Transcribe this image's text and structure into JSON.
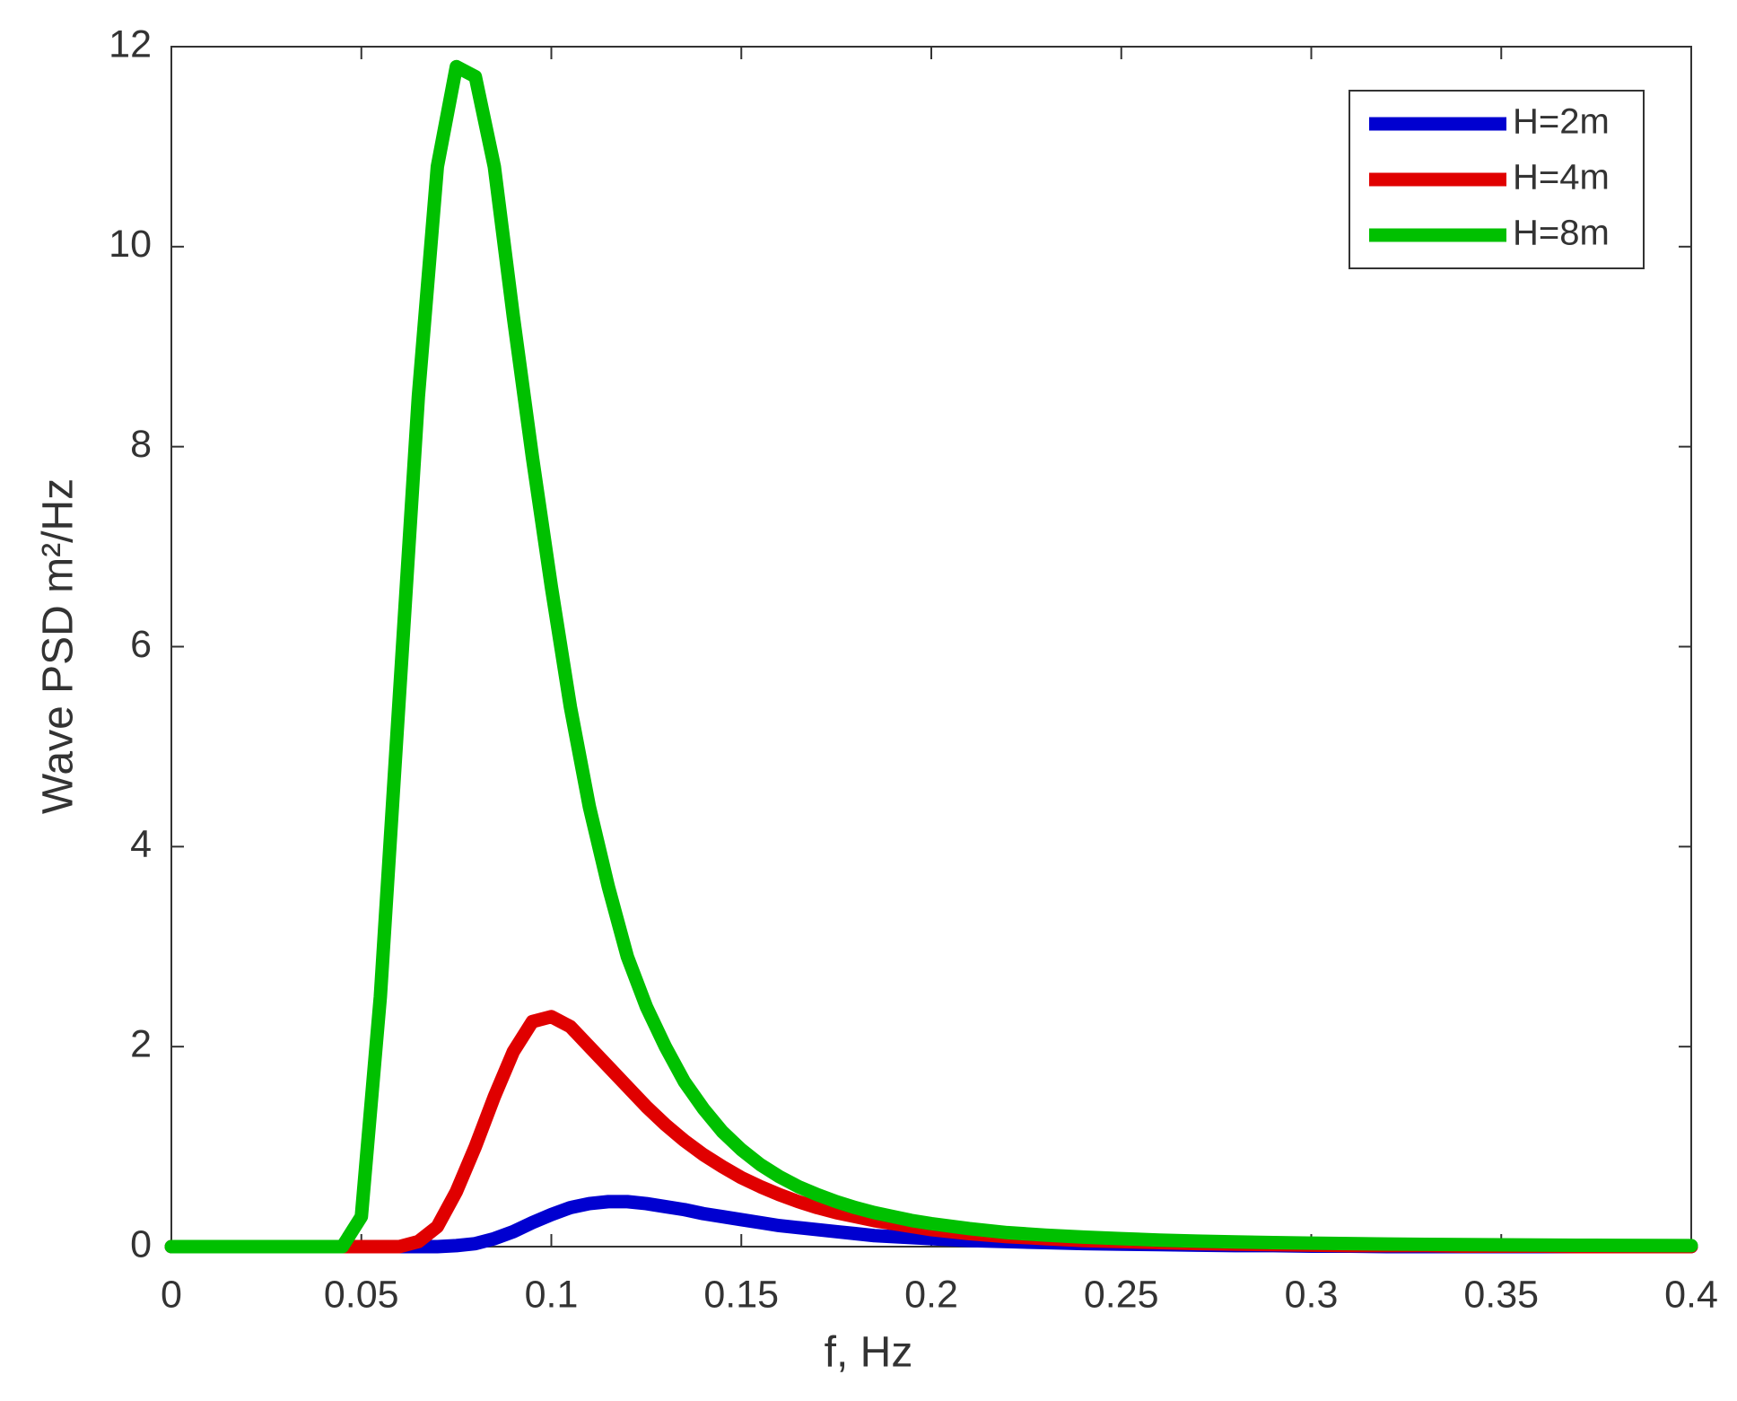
{
  "chart_data": {
    "type": "line",
    "xlabel": "f, Hz",
    "ylabel": "Wave PSD m²/Hz",
    "x": [
      0,
      0.01,
      0.02,
      0.03,
      0.04,
      0.045,
      0.05,
      0.055,
      0.06,
      0.065,
      0.07,
      0.075,
      0.08,
      0.085,
      0.09,
      0.095,
      0.1,
      0.105,
      0.11,
      0.115,
      0.12,
      0.125,
      0.13,
      0.135,
      0.14,
      0.145,
      0.15,
      0.155,
      0.16,
      0.165,
      0.17,
      0.175,
      0.18,
      0.185,
      0.19,
      0.195,
      0.2,
      0.21,
      0.22,
      0.23,
      0.24,
      0.25,
      0.26,
      0.27,
      0.28,
      0.29,
      0.3,
      0.31,
      0.32,
      0.33,
      0.34,
      0.35,
      0.36,
      0.37,
      0.38,
      0.39,
      0.4
    ],
    "series": [
      {
        "name": "H=2m",
        "color": "#0000d0",
        "values": [
          0,
          0,
          0,
          0,
          0,
          0,
          0,
          0,
          0,
          0,
          0,
          0.01,
          0.03,
          0.08,
          0.15,
          0.24,
          0.32,
          0.39,
          0.43,
          0.45,
          0.45,
          0.43,
          0.4,
          0.37,
          0.33,
          0.3,
          0.27,
          0.24,
          0.21,
          0.19,
          0.17,
          0.15,
          0.13,
          0.11,
          0.1,
          0.09,
          0.08,
          0.06,
          0.05,
          0.04,
          0.03,
          0.025,
          0.02,
          0.015,
          0.01,
          0.01,
          0.005,
          0.005,
          0,
          0,
          0,
          0,
          0,
          0,
          0,
          0,
          0
        ]
      },
      {
        "name": "H=4m",
        "color": "#e00000",
        "values": [
          0,
          0,
          0,
          0,
          0,
          0,
          0,
          0,
          0,
          0.05,
          0.2,
          0.55,
          1.0,
          1.5,
          1.95,
          2.25,
          2.3,
          2.2,
          2.0,
          1.8,
          1.6,
          1.4,
          1.22,
          1.06,
          0.92,
          0.8,
          0.69,
          0.6,
          0.52,
          0.45,
          0.39,
          0.34,
          0.3,
          0.26,
          0.23,
          0.2,
          0.17,
          0.13,
          0.1,
          0.08,
          0.06,
          0.05,
          0.04,
          0.03,
          0.025,
          0.02,
          0.015,
          0.01,
          0.01,
          0.01,
          0.005,
          0.005,
          0.005,
          0,
          0,
          0,
          0
        ]
      },
      {
        "name": "H=8m",
        "color": "#00c000",
        "values": [
          0,
          0,
          0,
          0,
          0,
          0,
          0.3,
          2.5,
          5.5,
          8.5,
          10.8,
          11.8,
          11.7,
          10.8,
          9.3,
          7.9,
          6.6,
          5.4,
          4.4,
          3.6,
          2.9,
          2.4,
          2.0,
          1.65,
          1.38,
          1.15,
          0.97,
          0.82,
          0.7,
          0.6,
          0.52,
          0.45,
          0.39,
          0.34,
          0.3,
          0.26,
          0.23,
          0.18,
          0.14,
          0.115,
          0.095,
          0.08,
          0.065,
          0.055,
          0.047,
          0.04,
          0.035,
          0.03,
          0.026,
          0.023,
          0.02,
          0.018,
          0.016,
          0.014,
          0.012,
          0.011,
          0.01
        ]
      }
    ],
    "xlim": [
      0,
      0.4
    ],
    "xticks": [
      0,
      0.05,
      0.1,
      0.15,
      0.2,
      0.25,
      0.3,
      0.35,
      0.4
    ],
    "ylim": [
      0,
      12
    ],
    "yticks": [
      0,
      2,
      4,
      6,
      8,
      10,
      12
    ],
    "legend": "upper right",
    "grid": false
  }
}
